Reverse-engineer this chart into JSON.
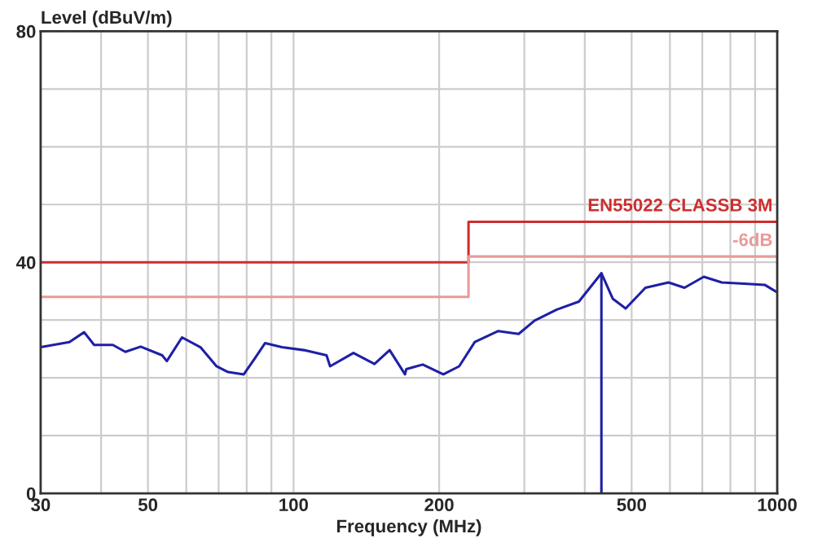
{
  "chart_data": {
    "type": "line",
    "xlabel": "Frequency (MHz)",
    "ylabel": "Level (dBuV/m)",
    "log": "x",
    "xlim": [
      30,
      1000
    ],
    "ylim": [
      0,
      80
    ],
    "xticks": [
      30,
      {
        "value": 40,
        "label": null
      },
      50,
      {
        "value": 60,
        "label": null
      },
      {
        "value": 70,
        "label": null
      },
      {
        "value": 80,
        "label": null
      },
      {
        "value": 90,
        "label": null
      },
      100,
      200,
      {
        "value": 300,
        "label": null
      },
      {
        "value": 400,
        "label": null
      },
      500,
      {
        "value": 600,
        "label": null
      },
      {
        "value": 700,
        "label": null
      },
      {
        "value": 800,
        "label": null
      },
      {
        "value": 900,
        "label": null
      },
      1000
    ],
    "yticks": [
      0,
      {
        "value": 10,
        "label": null
      },
      {
        "value": 20,
        "label": null
      },
      {
        "value": 30,
        "label": null
      },
      40,
      {
        "value": 50,
        "label": null
      },
      {
        "value": 60,
        "label": null
      },
      {
        "value": 70,
        "label": null
      },
      80
    ],
    "grid": true,
    "legend": false,
    "marker": "none",
    "line_style": "solid",
    "series": [
      {
        "name": "EN55022 CLASSB 3M",
        "type": "step",
        "color": "#cc2e2e",
        "x": [
          30,
          230,
          1000
        ],
        "values": [
          40,
          47,
          47
        ]
      },
      {
        "name": "-6dB",
        "type": "step",
        "color": "#e89a9a",
        "x": [
          30,
          230,
          1000
        ],
        "values": [
          34,
          41,
          41
        ]
      },
      {
        "color": "#1f1fa6",
        "x": [
          30,
          34.4,
          36.9,
          38.7,
          42.3,
          44.9,
          48.3,
          53.5,
          54.7,
          58.8,
          64.2,
          69.3,
          73.2,
          78.9,
          83.2,
          87.3,
          94.6,
          105,
          117,
          119,
          133,
          147,
          158,
          170,
          171,
          185,
          204,
          220,
          237,
          265,
          292,
          315,
          350,
          389,
          433,
          457,
          486,
          534,
          596,
          643,
          705,
          768,
          854,
          942,
          1000
        ],
        "values": [
          25.3,
          26.2,
          27.9,
          25.7,
          25.7,
          24.5,
          25.4,
          23.9,
          22.9,
          27.0,
          25.3,
          22.0,
          21.0,
          20.6,
          23.4,
          26.0,
          25.3,
          24.8,
          23.9,
          22.0,
          24.3,
          22.4,
          24.8,
          20.6,
          21.5,
          22.3,
          20.6,
          22.0,
          26.2,
          28.1,
          27.6,
          29.9,
          31.8,
          33.2,
          38.1,
          33.7,
          32.0,
          35.6,
          36.5,
          35.6,
          37.5,
          36.5,
          36.3,
          36.1,
          34.8
        ]
      },
      {
        "color": "#1f1fa6",
        "x": [
          433,
          433
        ],
        "values": [
          0,
          38.1
        ]
      }
    ]
  }
}
